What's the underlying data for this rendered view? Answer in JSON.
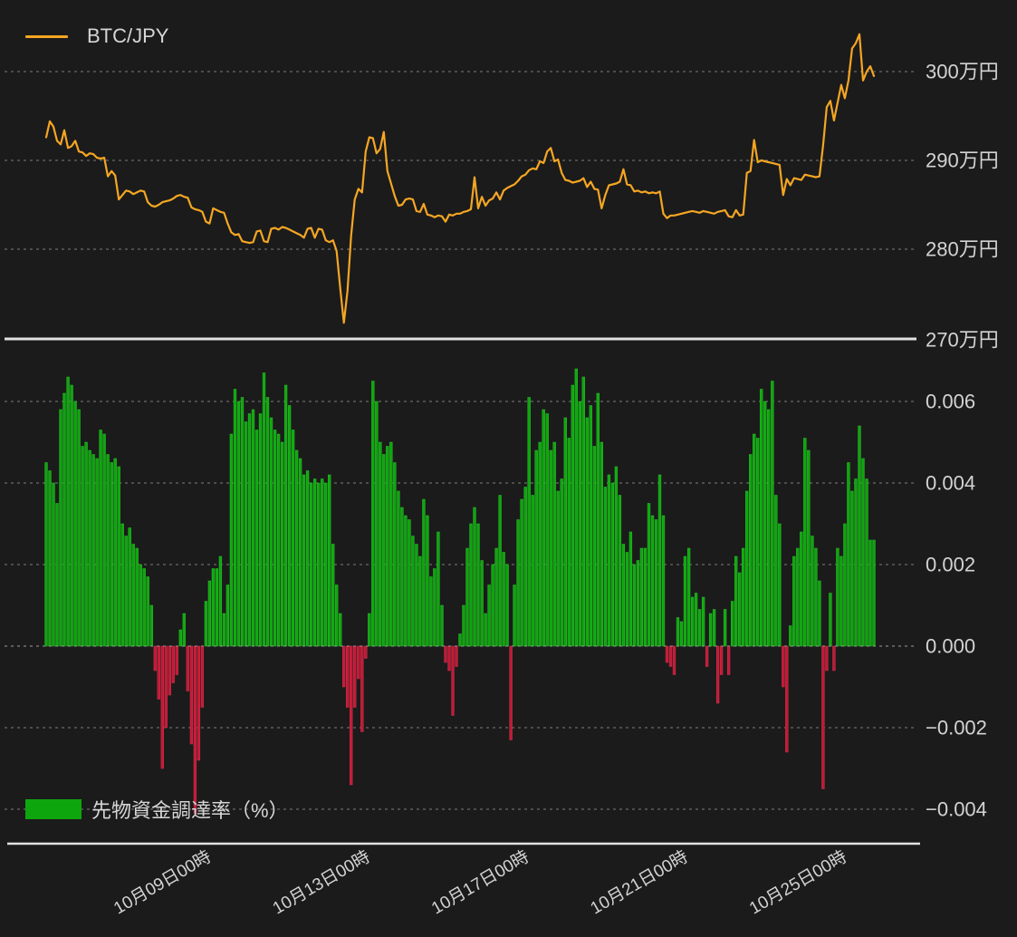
{
  "colors": {
    "background": "#1b1b1b",
    "text": "#d3d3d3",
    "grid": "#a9a9a9",
    "axis_line": "#e2e2e2",
    "line_orange": "#f5a623",
    "bar_green": "#0da60d",
    "bar_green_edge": "#2ec42e",
    "bar_red": "#c11a35",
    "bar_red_edge": "#d93050"
  },
  "legend_top": {
    "label": "BTC/JPY"
  },
  "legend_bottom": {
    "label": "先物資金調達率（%）"
  },
  "x_axis": {
    "span_hours": 500,
    "ticks": [
      {
        "hours": 96,
        "label": "10月09日00時"
      },
      {
        "hours": 192,
        "label": "10月13日00時"
      },
      {
        "hours": 288,
        "label": "10月17日00時"
      },
      {
        "hours": 384,
        "label": "10月21日00時"
      },
      {
        "hours": 480,
        "label": "10月25日00時"
      }
    ]
  },
  "chart_data": [
    {
      "type": "line",
      "name": "BTC/JPY",
      "unit": "万円",
      "ylim": [
        269.5,
        306
      ],
      "yticks": [
        {
          "value": 300,
          "label": "300万円"
        },
        {
          "value": 290,
          "label": "290万円"
        },
        {
          "value": 280,
          "label": "280万円"
        },
        {
          "value": 270,
          "label": "270万円"
        }
      ],
      "values": [
        292.6,
        294.4,
        293.8,
        292.2,
        291.8,
        293.4,
        291.4,
        291.6,
        292.2,
        291.0,
        290.9,
        290.5,
        290.8,
        290.7,
        290.3,
        290.2,
        290.3,
        288.2,
        288.8,
        288.3,
        285.6,
        286.1,
        286.6,
        286.5,
        286.2,
        286.4,
        286.6,
        286.5,
        285.3,
        284.9,
        284.8,
        285.0,
        285.3,
        285.4,
        285.5,
        285.7,
        286.0,
        286.1,
        285.9,
        285.8,
        284.7,
        284.5,
        284.4,
        284.2,
        283.1,
        282.9,
        284.6,
        284.4,
        284.2,
        284.1,
        282.9,
        281.9,
        281.6,
        281.7,
        280.9,
        280.8,
        280.7,
        280.8,
        282.0,
        282.1,
        280.9,
        280.8,
        282.3,
        282.4,
        282.2,
        282.5,
        282.4,
        282.2,
        282.0,
        281.8,
        281.6,
        281.3,
        282.3,
        282.4,
        281.3,
        282.3,
        282.2,
        281.0,
        280.8,
        281.0,
        279.8,
        275.6,
        271.7,
        275.3,
        281.5,
        285.6,
        286.8,
        286.4,
        291.0,
        292.6,
        292.5,
        290.8,
        291.3,
        293.2,
        288.8,
        287.4,
        286.0,
        284.9,
        285.0,
        285.6,
        285.7,
        285.6,
        284.3,
        284.2,
        285.1,
        283.9,
        283.8,
        283.6,
        283.8,
        283.7,
        283.1,
        283.9,
        283.8,
        284.0,
        284.0,
        284.2,
        284.3,
        284.5,
        288.1,
        284.6,
        285.9,
        284.9,
        285.5,
        285.7,
        286.4,
        285.6,
        286.6,
        286.9,
        287.1,
        287.3,
        287.7,
        288.2,
        288.4,
        288.9,
        289.1,
        289.0,
        289.9,
        289.7,
        291.0,
        291.4,
        289.9,
        290.1,
        288.6,
        287.8,
        287.7,
        287.5,
        287.6,
        287.7,
        288.0,
        287.0,
        287.6,
        286.8,
        286.7,
        284.6,
        286.1,
        287.2,
        287.3,
        287.4,
        287.6,
        289.0,
        287.3,
        287.2,
        286.5,
        286.6,
        286.4,
        286.5,
        286.3,
        286.4,
        286.3,
        286.5,
        284.0,
        283.5,
        283.8,
        283.8,
        283.9,
        284.0,
        284.1,
        284.2,
        284.3,
        284.2,
        284.1,
        284.3,
        284.2,
        284.1,
        284.0,
        284.2,
        284.3,
        284.4,
        283.7,
        283.6,
        284.4,
        283.8,
        283.9,
        288.6,
        288.8,
        292.3,
        289.8,
        290.0,
        289.9,
        289.8,
        289.7,
        289.6,
        289.5,
        286.1,
        287.9,
        287.2,
        288.0,
        287.9,
        287.8,
        288.4,
        288.3,
        288.2,
        288.1,
        288.2,
        291.7,
        296.0,
        296.7,
        294.5,
        296.5,
        298.5,
        297.0,
        299.0,
        302.6,
        303.2,
        304.2,
        299.0,
        300.0,
        300.6,
        299.5
      ]
    },
    {
      "type": "bar",
      "name": "先物資金調達率（%）",
      "yticks": [
        {
          "value": 0.006,
          "label": "0.006"
        },
        {
          "value": 0.004,
          "label": "0.004"
        },
        {
          "value": 0.002,
          "label": "0.002"
        },
        {
          "value": 0.0,
          "label": "0.000"
        },
        {
          "value": -0.002,
          "label": "−0.002"
        },
        {
          "value": -0.004,
          "label": "−0.004"
        }
      ],
      "values": [
        0.0045,
        0.0043,
        0.004,
        0.0035,
        0.0058,
        0.0062,
        0.0066,
        0.0064,
        0.006,
        0.0058,
        0.0049,
        0.005,
        0.0048,
        0.0047,
        0.0046,
        0.0053,
        0.0052,
        0.0047,
        0.0045,
        0.0046,
        0.0044,
        0.003,
        0.0027,
        0.0029,
        0.0025,
        0.0024,
        0.002,
        0.0019,
        0.0017,
        0.001,
        -0.0006,
        -0.0013,
        -0.003,
        -0.002,
        -0.0012,
        -0.0009,
        -0.0007,
        0.0004,
        0.0008,
        -0.0011,
        -0.0024,
        -0.0041,
        -0.0028,
        -0.0015,
        0.0011,
        0.0016,
        0.0019,
        0.0019,
        0.0022,
        0.0008,
        0.0015,
        0.0052,
        0.0063,
        0.006,
        0.0061,
        0.0055,
        0.0057,
        0.0058,
        0.0053,
        0.0057,
        0.0067,
        0.0061,
        0.0056,
        0.0053,
        0.0052,
        0.005,
        0.0064,
        0.0059,
        0.0053,
        0.0048,
        0.0046,
        0.0042,
        0.0043,
        0.004,
        0.0041,
        0.004,
        0.0041,
        0.004,
        0.0042,
        0.0025,
        0.0015,
        0.0008,
        -0.001,
        -0.0015,
        -0.0034,
        -0.0015,
        -0.0008,
        -0.0021,
        -0.0003,
        0.0008,
        0.0065,
        0.006,
        0.005,
        0.0047,
        0.0049,
        0.005,
        0.0045,
        0.0038,
        0.0034,
        0.0032,
        0.0031,
        0.0027,
        0.0025,
        0.0022,
        0.0036,
        0.0032,
        0.0017,
        0.0019,
        0.0028,
        0.001,
        -0.0004,
        -0.0006,
        -0.0017,
        -0.0005,
        0.0003,
        0.001,
        0.0024,
        0.003,
        0.0034,
        0.003,
        0.0021,
        0.0008,
        0.0015,
        0.002,
        0.0024,
        0.0037,
        0.0023,
        0.002,
        -0.0023,
        0.0015,
        0.0031,
        0.0036,
        0.0039,
        0.0061,
        0.0037,
        0.0048,
        0.005,
        0.0058,
        0.0057,
        0.0048,
        0.005,
        0.0038,
        0.0041,
        0.0056,
        0.0051,
        0.0064,
        0.0068,
        0.006,
        0.0066,
        0.0056,
        0.0059,
        0.0049,
        0.0062,
        0.005,
        0.0039,
        0.0042,
        0.004,
        0.0044,
        0.0037,
        0.0025,
        0.0023,
        0.0028,
        0.002,
        0.0021,
        0.0024,
        0.0024,
        0.0035,
        0.0032,
        0.0031,
        0.0042,
        0.0032,
        -0.0004,
        -0.0005,
        -0.0007,
        0.0007,
        0.0006,
        0.0022,
        0.0024,
        0.0012,
        0.0013,
        0.0009,
        0.0012,
        -0.0005,
        0.0008,
        0.0009,
        -0.0014,
        -0.0007,
        0.0009,
        -0.0007,
        0.0011,
        0.0022,
        0.0018,
        0.0024,
        0.0038,
        0.0047,
        0.0052,
        0.0051,
        0.0063,
        0.006,
        0.0058,
        0.0065,
        0.0037,
        0.003,
        -0.001,
        -0.0026,
        0.0005,
        0.0022,
        0.0024,
        0.0028,
        0.0051,
        0.0048,
        0.0027,
        0.0024,
        0.0016,
        -0.0035,
        -0.0006,
        0.0013,
        -0.0006,
        0.0024,
        0.0022,
        0.003,
        0.0045,
        0.0038,
        0.0041,
        0.0054,
        0.0046,
        0.0041,
        0.0026,
        0.0026
      ]
    }
  ]
}
